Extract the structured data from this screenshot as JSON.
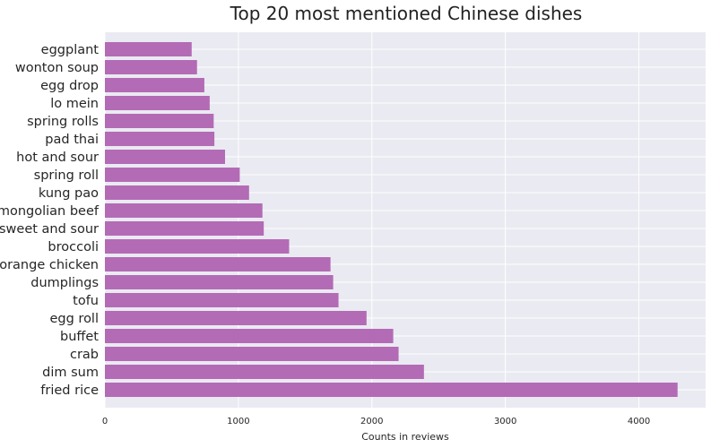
{
  "chart_data": {
    "type": "bar",
    "orientation": "horizontal",
    "title": "Top 20 most mentioned Chinese dishes",
    "xlabel": "Counts in reviews",
    "ylabel": "",
    "xlim": [
      0,
      4500
    ],
    "xticks": [
      0,
      1000,
      2000,
      3000,
      4000
    ],
    "grid": true,
    "bar_color": "#b36bb5",
    "background_color": "#eaeaf2",
    "grid_color": "#ffffff",
    "categories": [
      "fried rice",
      "dim sum",
      "crab",
      "buffet",
      "egg roll",
      "tofu",
      "dumplings",
      "orange chicken",
      "broccoli",
      "sweet and sour",
      "mongolian beef",
      "kung pao",
      "spring roll",
      "hot and sour",
      "pad thai",
      "spring rolls",
      "lo mein",
      "egg drop",
      "wonton soup",
      "eggplant"
    ],
    "values": [
      4290,
      2390,
      2200,
      2160,
      1960,
      1750,
      1710,
      1690,
      1380,
      1190,
      1180,
      1080,
      1010,
      900,
      820,
      815,
      785,
      745,
      690,
      650
    ]
  }
}
